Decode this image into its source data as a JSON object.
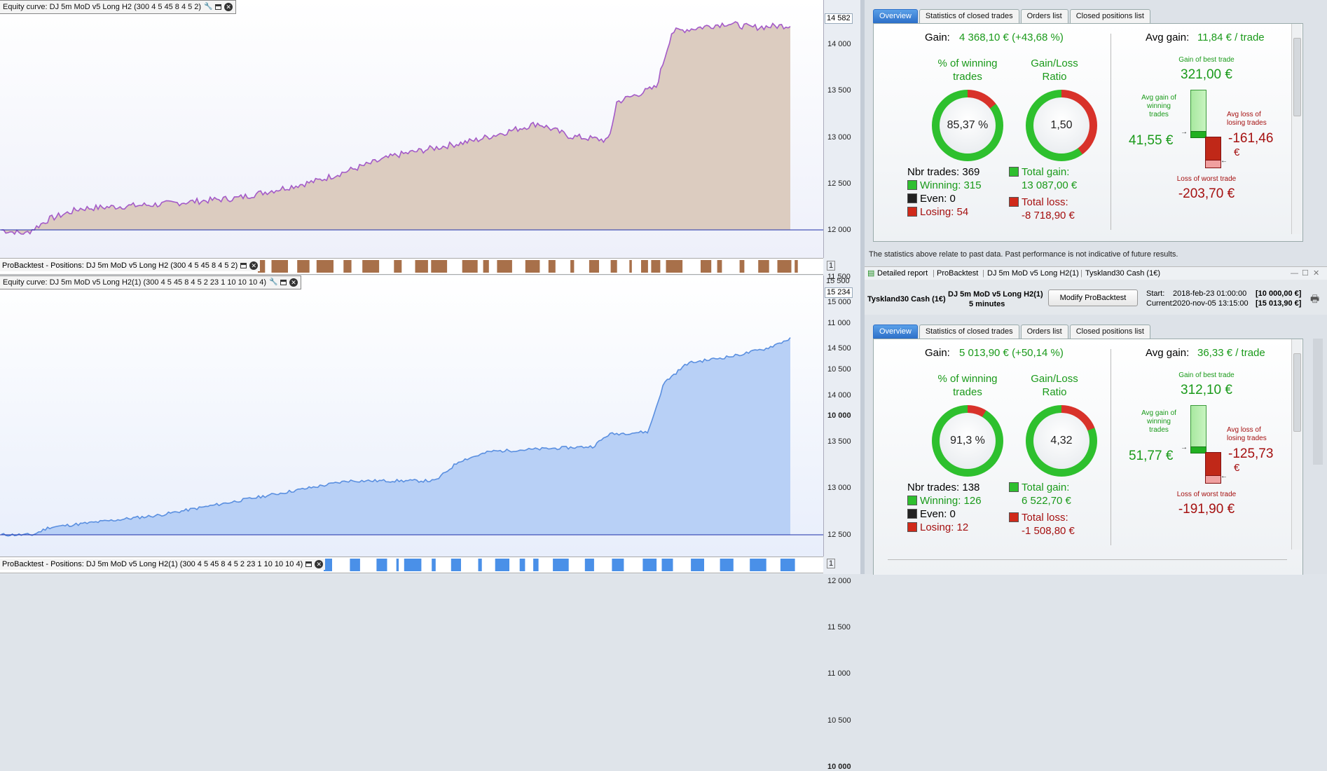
{
  "top_chart": {
    "title": "Equity curve: DJ 5m MoD v5 Long H2 (300 4 5 45 8 4 5 2)",
    "current_tag": "14 582",
    "y_ticks": [
      "14 000",
      "13 500",
      "13 000",
      "12 500",
      "12 000",
      "11 500",
      "11 000",
      "10 500",
      "10 000"
    ],
    "positions_title": "ProBacktest - Positions: DJ 5m MoD v5 Long H2 (300 4 5 45 8 4 5 2)",
    "line_color": "#a45ac8",
    "fill_color": "#dcccc0",
    "pos_color": "#a8704a",
    "icon_settings": "wrench-icon",
    "icon_window": "window-icon",
    "icon_close": "close-icon"
  },
  "bottom_chart": {
    "title": "Equity curve: DJ 5m MoD v5 Long H2(1) (300 4 5 45 8 4 5 2 23 1 10 10 10 4)",
    "top_tick": "15 500",
    "current_tag": "15 234",
    "y_ticks": [
      "15 000",
      "14 500",
      "14 000",
      "13 500",
      "13 000",
      "12 500",
      "12 000",
      "11 500",
      "11 000",
      "10 500",
      "10 000"
    ],
    "positions_title": "ProBacktest - Positions: DJ 5m MoD v5 Long H2(1) (300 4 5 45 8 4 5 2 23 1 10 10 10 4)",
    "line_color": "#5a8fe0",
    "fill_color": "#b8d0f6",
    "pos_color": "#4a90e8"
  },
  "tabs": [
    "Overview",
    "Statistics of closed trades",
    "Orders list",
    "Closed positions list"
  ],
  "report1": {
    "gain_label": "Gain:",
    "gain_value": "4 368,10 € (+43,68 %)",
    "winning_label": [
      "% of winning",
      "trades"
    ],
    "win_pct": "85,37 %",
    "win_frac": 0.8537,
    "ratio_label": [
      "Gain/Loss",
      "Ratio"
    ],
    "ratio": "1,50",
    "ratio_frac": 0.6,
    "nbr_trades": "Nbr trades: 369",
    "winning": "Winning: 315",
    "even": "Even: 0",
    "losing": "Losing: 54",
    "total_gain_label": "Total gain:",
    "total_gain": "13 087,00 €",
    "total_loss_label": "Total loss:",
    "total_loss": "-8 718,90 €",
    "avg_gain_label": "Avg gain:",
    "avg_gain": "11,84 € / trade",
    "best_label": "Gain of best trade",
    "best": "321,00 €",
    "avg_win_label": [
      "Avg gain of",
      "winning",
      "trades"
    ],
    "avg_win": "41,55 €",
    "avg_loss_label": [
      "Avg loss of",
      "losing trades"
    ],
    "avg_loss": [
      "-161,46",
      "€"
    ],
    "worst_label": "Loss of worst trade",
    "worst": "-203,70 €"
  },
  "disclaimer": "The statistics above relate to past data. Past performance is not indicative of future results.",
  "report2_header": {
    "breadcrumb": [
      "Detailed report",
      "ProBacktest",
      "DJ 5m MoD v5 Long H2(1)",
      "Tyskland30 Cash (1€)"
    ],
    "instrument": "Tyskland30 Cash (1€)",
    "system": "DJ 5m MoD v5 Long H2(1)",
    "timeframe": "5 minutes",
    "modify_button": "Modify ProBacktest",
    "start_label": "Start:",
    "start_value": "2018-feb-23 01:00:00",
    "start_amount": "[10 000,00 €]",
    "current_label": "Current:",
    "current_value": "2020-nov-05 13:15:00",
    "current_amount": "[15 013,90 €]"
  },
  "report2": {
    "gain_label": "Gain:",
    "gain_value": "5 013,90 € (+50,14 %)",
    "winning_label": [
      "% of winning",
      "trades"
    ],
    "win_pct": "91,3 %",
    "win_frac": 0.913,
    "ratio_label": [
      "Gain/Loss",
      "Ratio"
    ],
    "ratio": "4,32",
    "ratio_frac": 0.81,
    "nbr_trades": "Nbr trades: 138",
    "winning": "Winning: 126",
    "even": "Even: 0",
    "losing": "Losing: 12",
    "total_gain_label": "Total gain:",
    "total_gain": "6 522,70 €",
    "total_loss_label": "Total loss:",
    "total_loss": "-1 508,80 €",
    "avg_gain_label": "Avg gain:",
    "avg_gain": "36,33 € / trade",
    "best_label": "Gain of best trade",
    "best": "312,10 €",
    "avg_win_label": [
      "Avg gain of",
      "winning",
      "trades"
    ],
    "avg_win": "51,77 €",
    "avg_loss_label": [
      "Avg loss of",
      "losing trades"
    ],
    "avg_loss": [
      "-125,73",
      "€"
    ],
    "worst_label": "Loss of worst trade",
    "worst": "-191,90 €"
  }
}
